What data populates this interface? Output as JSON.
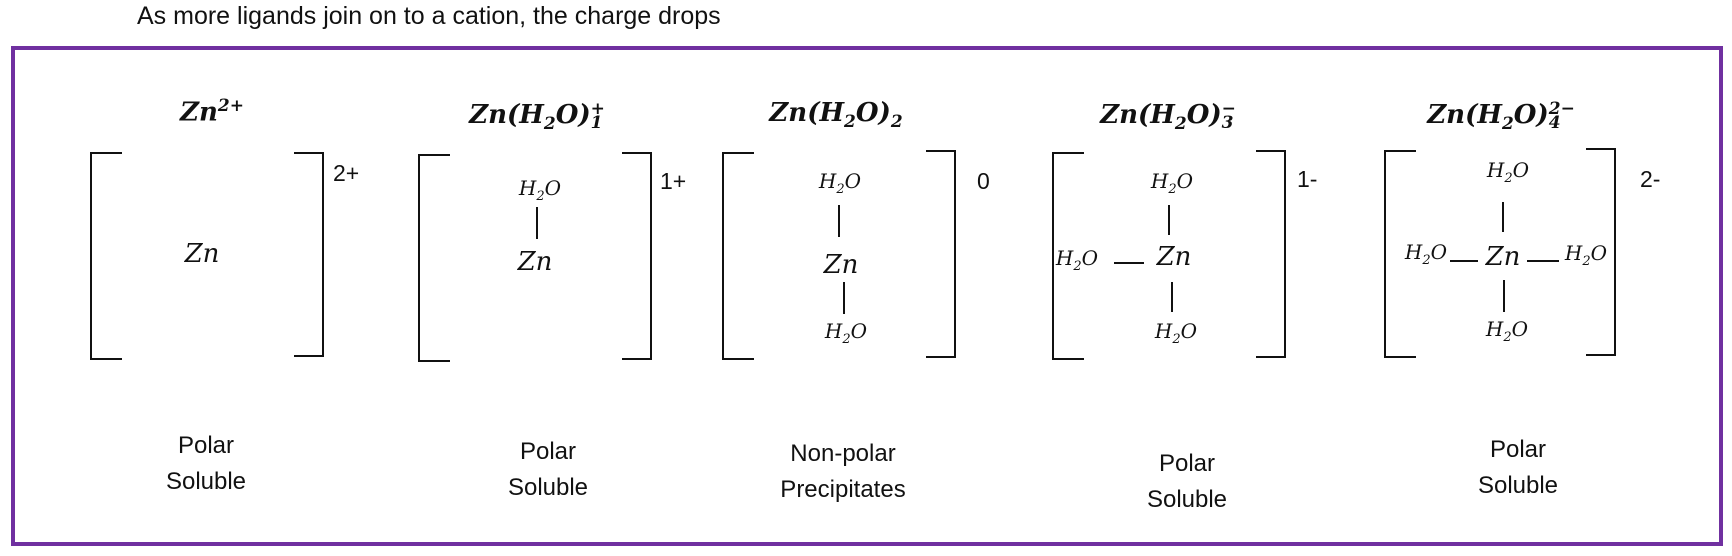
{
  "caption": "As more ligands join on to a cation, the charge drops",
  "species": [
    {
      "title": {
        "base": "Zn",
        "sup": "2+"
      },
      "charge": "2+",
      "center": "Zn",
      "properties": [
        "Polar",
        "Soluble"
      ]
    },
    {
      "title": {
        "base": "Zn(H",
        "sub_inner": "2",
        "mid": "O)",
        "sup": "+",
        "sub": "1"
      },
      "charge": "1+",
      "center": "Zn",
      "ligand": "H2O",
      "properties": [
        "Polar",
        "Soluble"
      ]
    },
    {
      "title": {
        "base": "Zn(H",
        "sub_inner": "2",
        "mid": "O)",
        "sub": "2"
      },
      "charge": "0",
      "center": "Zn",
      "ligand": "H2O",
      "properties": [
        "Non-polar",
        "Precipitates"
      ]
    },
    {
      "title": {
        "base": "Zn(H",
        "sub_inner": "2",
        "mid": "O)",
        "sup": "−",
        "sub": "3"
      },
      "charge": "1-",
      "center": "Zn",
      "ligand": "H2O",
      "properties": [
        "Polar",
        "Soluble"
      ]
    },
    {
      "title": {
        "base": "Zn(H",
        "sub_inner": "2",
        "mid": "O)",
        "sup": "2−",
        "sub": "4"
      },
      "charge": "2-",
      "center": "Zn",
      "ligand": "H2O",
      "properties": [
        "Polar",
        "Soluble"
      ]
    }
  ],
  "colors": {
    "frame": "#7030a0",
    "ink": "#111111"
  }
}
